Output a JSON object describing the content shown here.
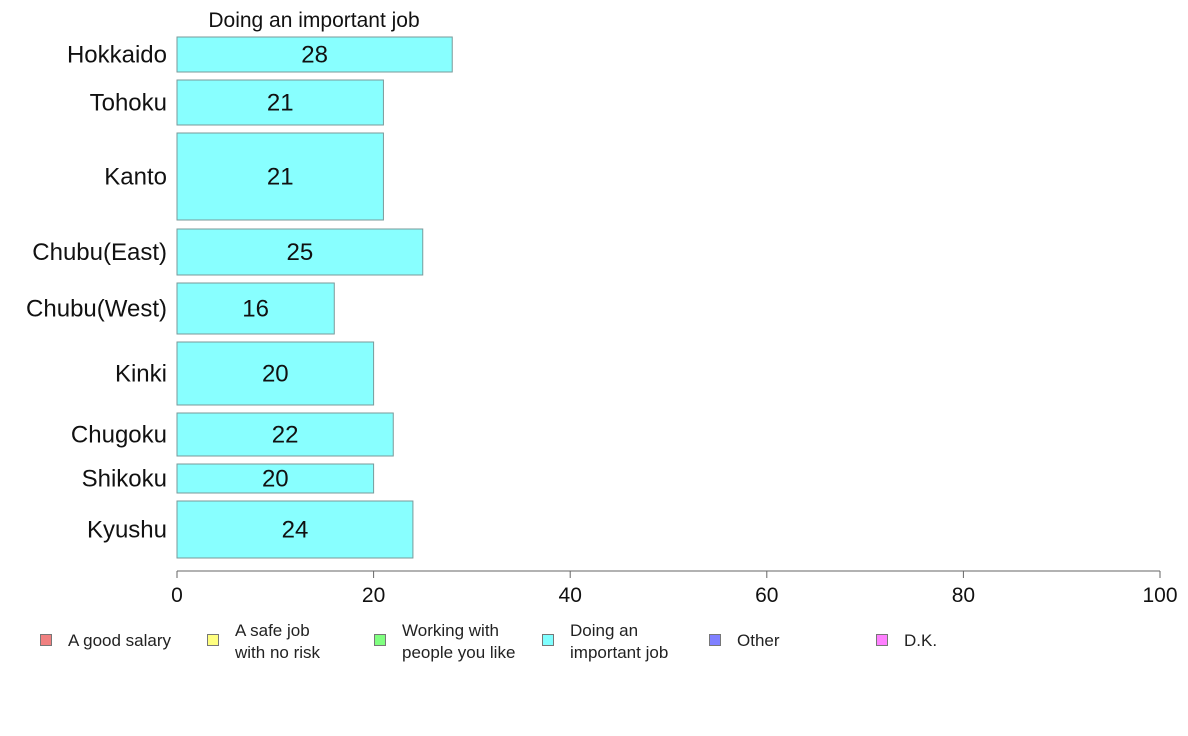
{
  "chart_data": {
    "type": "bar",
    "orientation": "horizontal",
    "title": "Doing an important job",
    "categories": [
      "Hokkaido",
      "Tohoku",
      "Kanto",
      "Chubu(East)",
      "Chubu(West)",
      "Kinki",
      "Chugoku",
      "Shikoku",
      "Kyushu"
    ],
    "values": [
      28,
      21,
      21,
      25,
      16,
      20,
      22,
      20,
      24
    ],
    "data_labels": [
      "28",
      "21",
      "21",
      "25",
      "16",
      "20",
      "22",
      "20",
      "24"
    ],
    "xlim": [
      0,
      100
    ],
    "x_ticks": [
      "0",
      "20",
      "40",
      "60",
      "80",
      "100"
    ],
    "bar_color": "#88ffff",
    "grid": false,
    "legend_position": "bottom",
    "legend": [
      {
        "label": "A good salary",
        "color": "#f08080"
      },
      {
        "label": "A safe job\nwith no risk",
        "color": "#ffff80"
      },
      {
        "label": "Working with\npeople you like",
        "color": "#80ff80"
      },
      {
        "label": "Doing an\nimportant job",
        "color": "#80ffff"
      },
      {
        "label": "Other",
        "color": "#8080ff"
      },
      {
        "label": "D.K.",
        "color": "#ff80ff"
      }
    ]
  }
}
